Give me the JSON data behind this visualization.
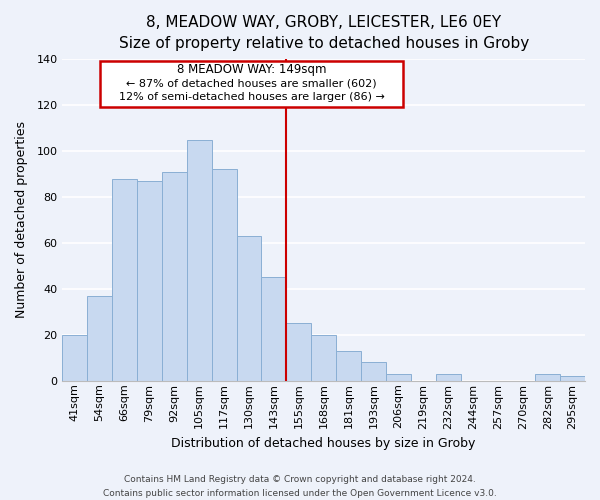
{
  "title": "8, MEADOW WAY, GROBY, LEICESTER, LE6 0EY",
  "subtitle": "Size of property relative to detached houses in Groby",
  "xlabel": "Distribution of detached houses by size in Groby",
  "ylabel": "Number of detached properties",
  "bar_labels": [
    "41sqm",
    "54sqm",
    "66sqm",
    "79sqm",
    "92sqm",
    "105sqm",
    "117sqm",
    "130sqm",
    "143sqm",
    "155sqm",
    "168sqm",
    "181sqm",
    "193sqm",
    "206sqm",
    "219sqm",
    "232sqm",
    "244sqm",
    "257sqm",
    "270sqm",
    "282sqm",
    "295sqm"
  ],
  "bar_heights": [
    20,
    37,
    88,
    87,
    91,
    105,
    92,
    63,
    45,
    25,
    20,
    13,
    8,
    3,
    0,
    3,
    0,
    0,
    0,
    3,
    2
  ],
  "bar_color": "#c8d9f0",
  "bar_edge_color": "#8aafd4",
  "vline_color": "#cc0000",
  "annotation_box_color": "#ffffff",
  "annotation_box_edge_color": "#cc0000",
  "annotation_title": "8 MEADOW WAY: 149sqm",
  "annotation_line1": "← 87% of detached houses are smaller (602)",
  "annotation_line2": "12% of semi-detached houses are larger (86) →",
  "ylim": [
    0,
    140
  ],
  "yticks": [
    0,
    20,
    40,
    60,
    80,
    100,
    120,
    140
  ],
  "footer1": "Contains HM Land Registry data © Crown copyright and database right 2024.",
  "footer2": "Contains public sector information licensed under the Open Government Licence v3.0.",
  "background_color": "#eef2fa",
  "grid_color": "#ffffff",
  "title_fontsize": 11,
  "subtitle_fontsize": 10,
  "axis_label_fontsize": 9,
  "tick_fontsize": 8
}
